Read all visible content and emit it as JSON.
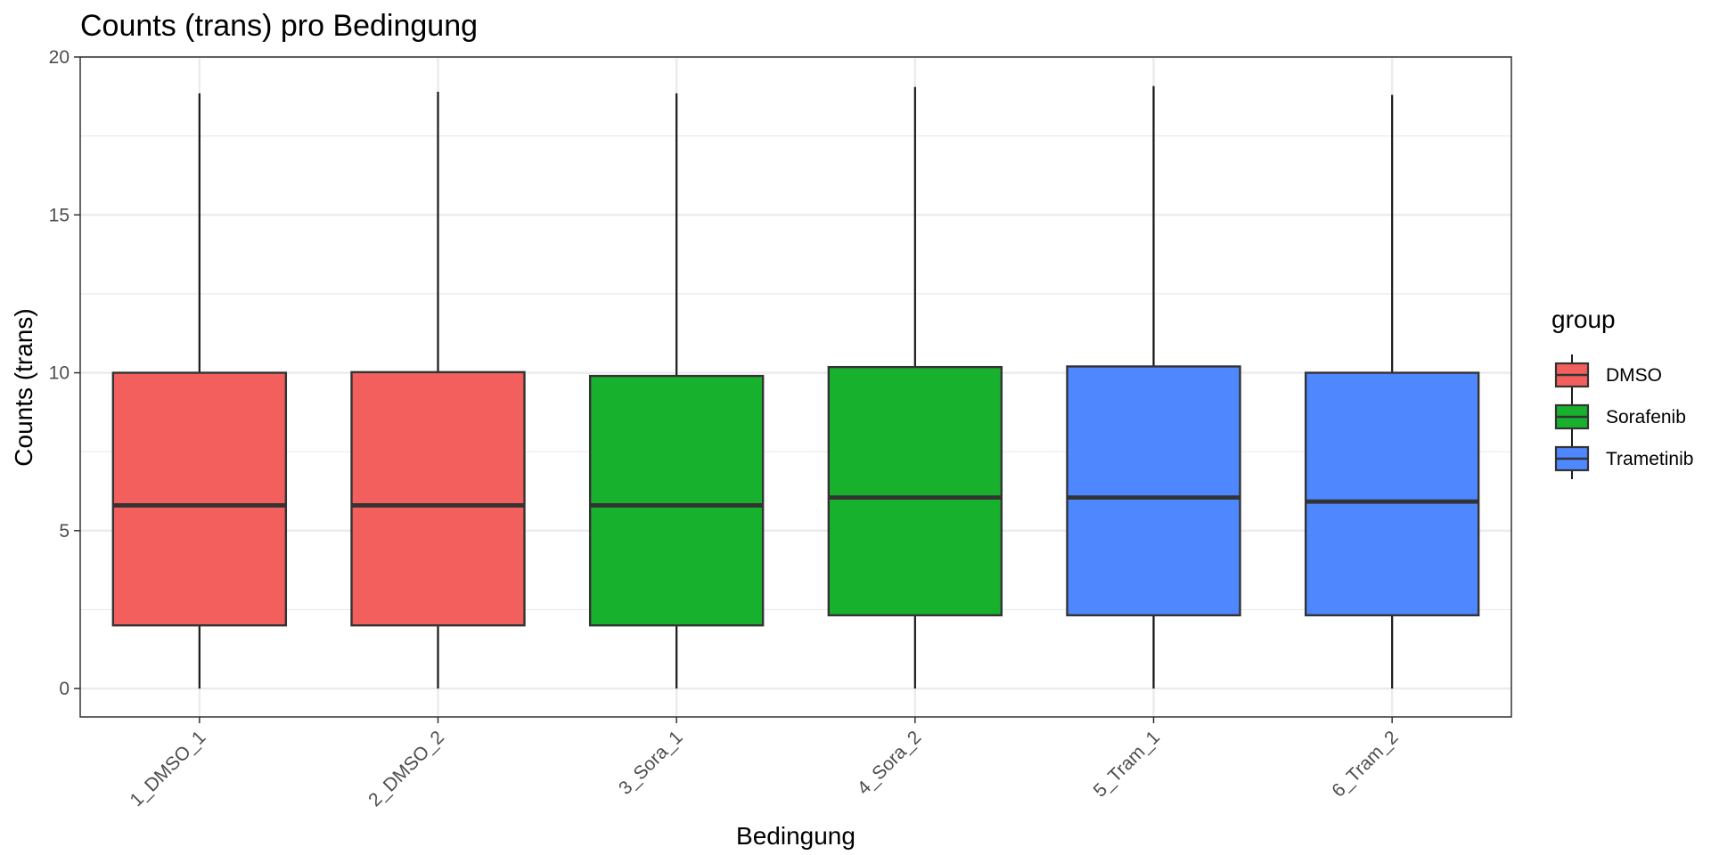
{
  "chart_data": {
    "type": "boxplot",
    "title": "Counts (trans) pro Bedingung",
    "xlabel": "Bedingung",
    "ylabel": "Counts (trans)",
    "ylim": [
      -0.9,
      20
    ],
    "yticks": [
      0,
      5,
      10,
      15,
      20
    ],
    "grid": true,
    "legend": {
      "title": "group",
      "placement": "right",
      "entries": [
        {
          "name": "DMSO",
          "color": "#F35F5C"
        },
        {
          "name": "Sorafenib",
          "color": "#18B12E"
        },
        {
          "name": "Trametinib",
          "color": "#4F87FF"
        }
      ]
    },
    "categories": [
      "1_DMSO_1",
      "2_DMSO_2",
      "3_Sora_1",
      "4_Sora_2",
      "5_Tram_1",
      "6_Tram_2"
    ],
    "boxes": [
      {
        "category": "1_DMSO_1",
        "group": "DMSO",
        "min": 0,
        "q1": 2.0,
        "median": 5.8,
        "q3": 10.0,
        "max": 18.85
      },
      {
        "category": "2_DMSO_2",
        "group": "DMSO",
        "min": 0,
        "q1": 2.0,
        "median": 5.8,
        "q3": 10.02,
        "max": 18.9
      },
      {
        "category": "3_Sora_1",
        "group": "Sorafenib",
        "min": 0,
        "q1": 2.0,
        "median": 5.8,
        "q3": 9.9,
        "max": 18.85
      },
      {
        "category": "4_Sora_2",
        "group": "Sorafenib",
        "min": 0,
        "q1": 2.32,
        "median": 6.05,
        "q3": 10.18,
        "max": 19.05
      },
      {
        "category": "5_Tram_1",
        "group": "Trametinib",
        "min": 0,
        "q1": 2.32,
        "median": 6.05,
        "q3": 10.2,
        "max": 19.08
      },
      {
        "category": "6_Tram_2",
        "group": "Trametinib",
        "min": 0,
        "q1": 2.32,
        "median": 5.92,
        "q3": 10.0,
        "max": 18.8
      }
    ]
  }
}
